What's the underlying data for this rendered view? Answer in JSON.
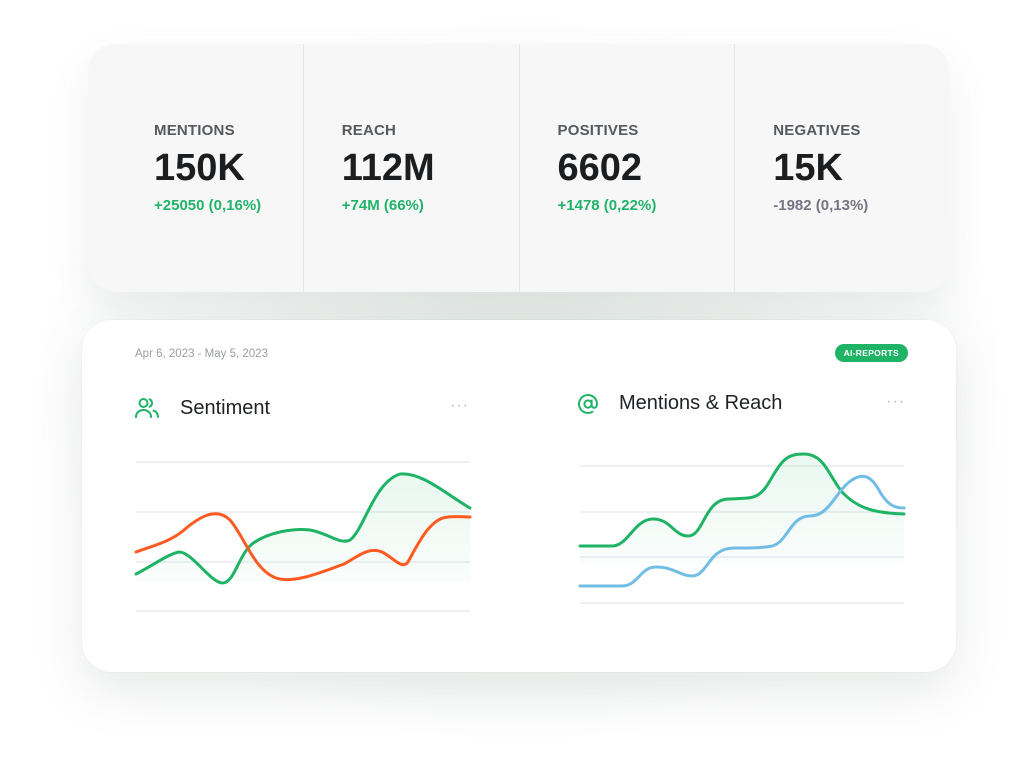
{
  "stats": [
    {
      "label": "MENTIONS",
      "value": "150K",
      "delta": "+25050 (0,16%)",
      "trend": "positive"
    },
    {
      "label": "REACH",
      "value": "112M",
      "delta": "+74M (66%)",
      "trend": "positive"
    },
    {
      "label": "POSITIVES",
      "value": "6602",
      "delta": "+1478 (0,22%)",
      "trend": "positive"
    },
    {
      "label": "NEGATIVES",
      "value": "15K",
      "delta": "-1982 (0,13%)",
      "trend": "negative"
    }
  ],
  "report": {
    "date_range": "Apr 6, 2023 - May 5, 2023",
    "badge": "AI-REPORTS"
  },
  "panels": {
    "sentiment": {
      "title": "Sentiment",
      "icon": "users-icon",
      "more": "···"
    },
    "mentions_reach": {
      "title": "Mentions & Reach",
      "icon": "at-icon",
      "more": "···"
    }
  },
  "colors": {
    "green": "#1fb366",
    "orange": "#ff5a1f",
    "blue": "#72bde6",
    "grid": "#e3e8f0"
  }
}
